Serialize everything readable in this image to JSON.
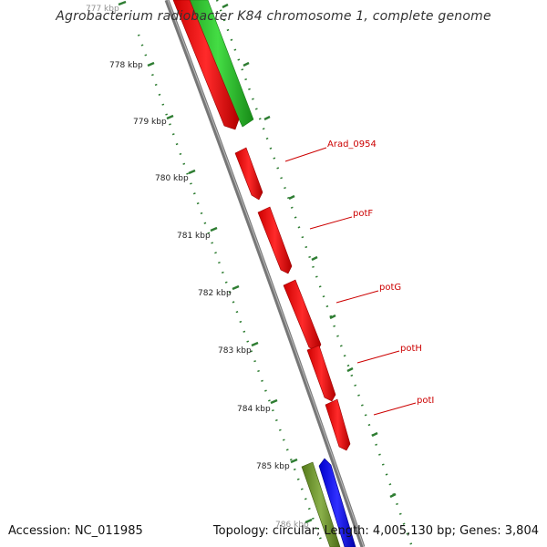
{
  "title": "Agrobacterium radiobacter K84 chromosome 1, complete genome",
  "footer": {
    "accession": "Accession: NC_011985",
    "stats": "Topology: circular; Length: 4,005,130 bp; Genes: 3,804"
  },
  "ticks": [
    "777 kbp",
    "778 kbp",
    "779 kbp",
    "780 kbp",
    "781 kbp",
    "782 kbp",
    "783 kbp",
    "784 kbp",
    "785 kbp",
    "786 kbp"
  ],
  "genes": [
    "Arad_0954",
    "potF",
    "potG",
    "potH",
    "potI"
  ],
  "colors": {
    "forward_gene": "#ff0000",
    "reverse_gene": "#22bb22",
    "olive_gene": "#6b8e23",
    "blue_gene": "#0000ff",
    "backbone": "#888888",
    "ticks": "#2e7d32",
    "label": "#cc0000"
  }
}
